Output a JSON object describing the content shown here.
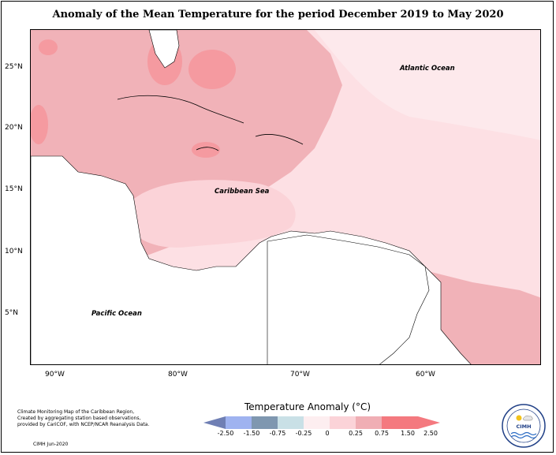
{
  "title": "Anomaly of the Mean Temperature for the period December 2019 to May 2020",
  "axes": {
    "latitudes": [
      "25°N",
      "20°N",
      "15°N",
      "10°N",
      "5°N"
    ],
    "longitudes": [
      "90°W",
      "80°W",
      "70°W",
      "60°W"
    ]
  },
  "labels": {
    "atlantic": "Atlantic Ocean",
    "caribbean": "Caribbean Sea",
    "pacific": "Pacific Ocean"
  },
  "legend": {
    "title": "Temperature Anomaly (°C)",
    "ticks": [
      "-2.50",
      "-1.50",
      "-0.75",
      "-0.25",
      "0",
      "0.25",
      "0.75",
      "1.50",
      "2.50"
    ],
    "colors": [
      "#6f7fb4",
      "#9fb3f0",
      "#7f97b0",
      "#c9e0e6",
      "#fdeef0",
      "#fbd3d8",
      "#f0aeb4",
      "#f4797f"
    ]
  },
  "credits": {
    "text": "Climate Monitoring Map of the Caribbean Region, Created by aggregating station based observations, provided by CariCOF, with NCEP/NCAR Reanalysis Data.",
    "date": "CIMH Jun-2020"
  },
  "logo": {
    "text": "CIMH"
  },
  "colors": {
    "light_pink": "#fde0e4",
    "medium_pink": "#f1b2b8",
    "strong_pink": "#f59aa0",
    "pale": "#fde9ec",
    "blue": "#8aa4c8"
  }
}
